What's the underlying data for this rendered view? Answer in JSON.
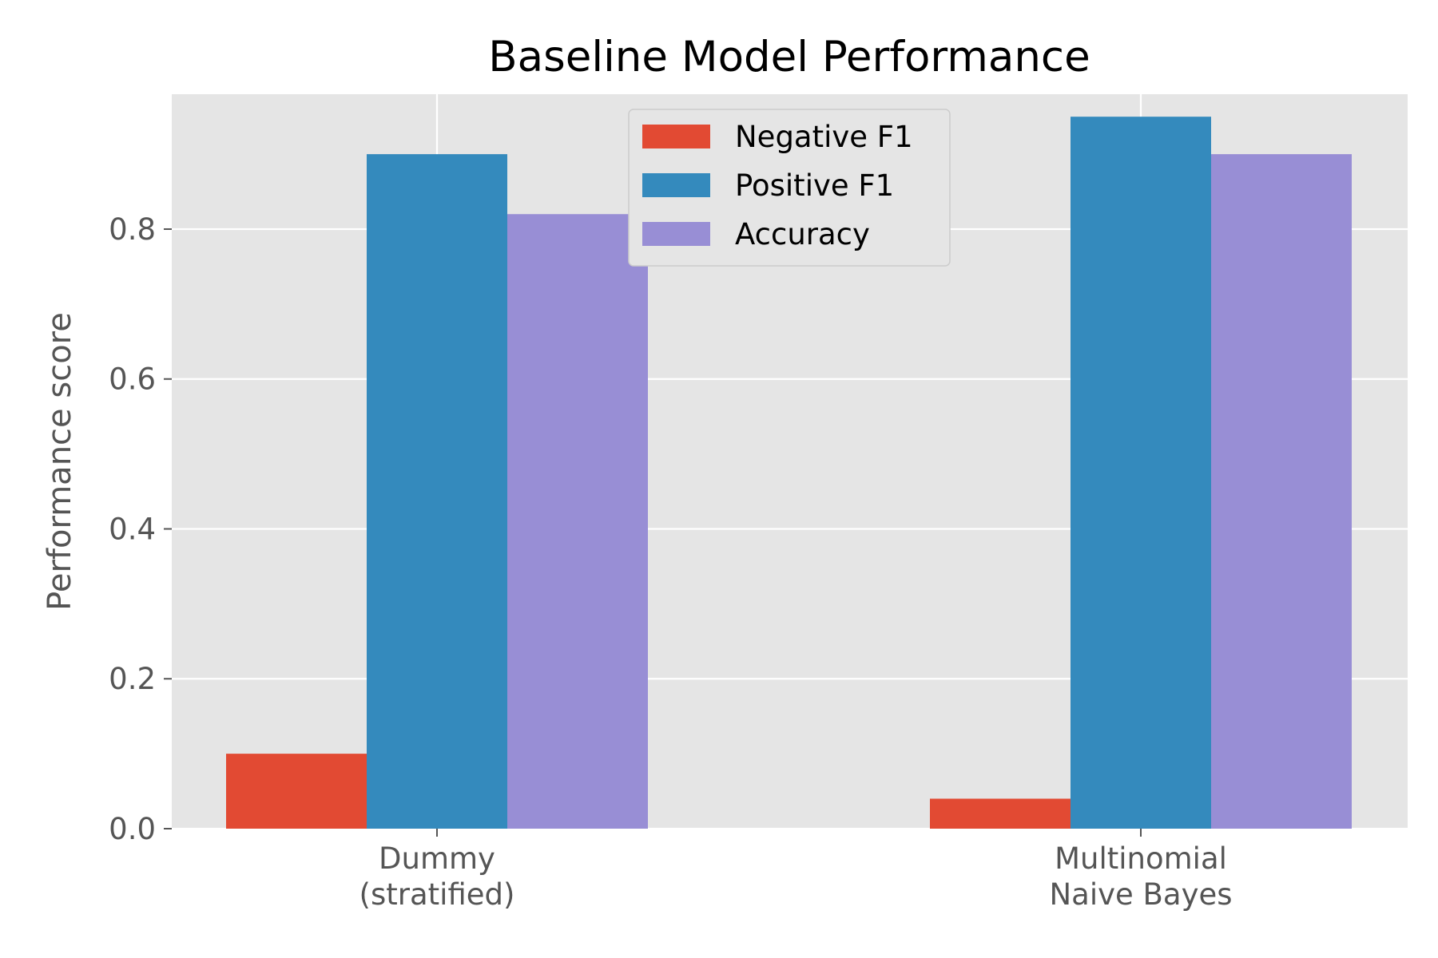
{
  "chart_data": {
    "type": "bar",
    "title": "Baseline Model Performance",
    "xlabel": "",
    "ylabel": "Performance score",
    "ylim": [
      0,
      0.98
    ],
    "yticks": [
      "0.0",
      "0.2",
      "0.4",
      "0.6",
      "0.8"
    ],
    "ytick_values": [
      0,
      0.2,
      0.4,
      0.6,
      0.8
    ],
    "categories": [
      [
        "Dummy",
        "(stratified)"
      ],
      [
        "Multinomial",
        "Naive Bayes"
      ]
    ],
    "series": [
      {
        "name": "Negative F1",
        "color": "#E24A33",
        "values": [
          0.1,
          0.04
        ]
      },
      {
        "name": "Positive F1",
        "color": "#348ABD",
        "values": [
          0.9,
          0.95
        ]
      },
      {
        "name": "Accuracy",
        "color": "#988ED5",
        "values": [
          0.82,
          0.9
        ]
      }
    ],
    "grid": true,
    "legend_position": "top-center"
  }
}
